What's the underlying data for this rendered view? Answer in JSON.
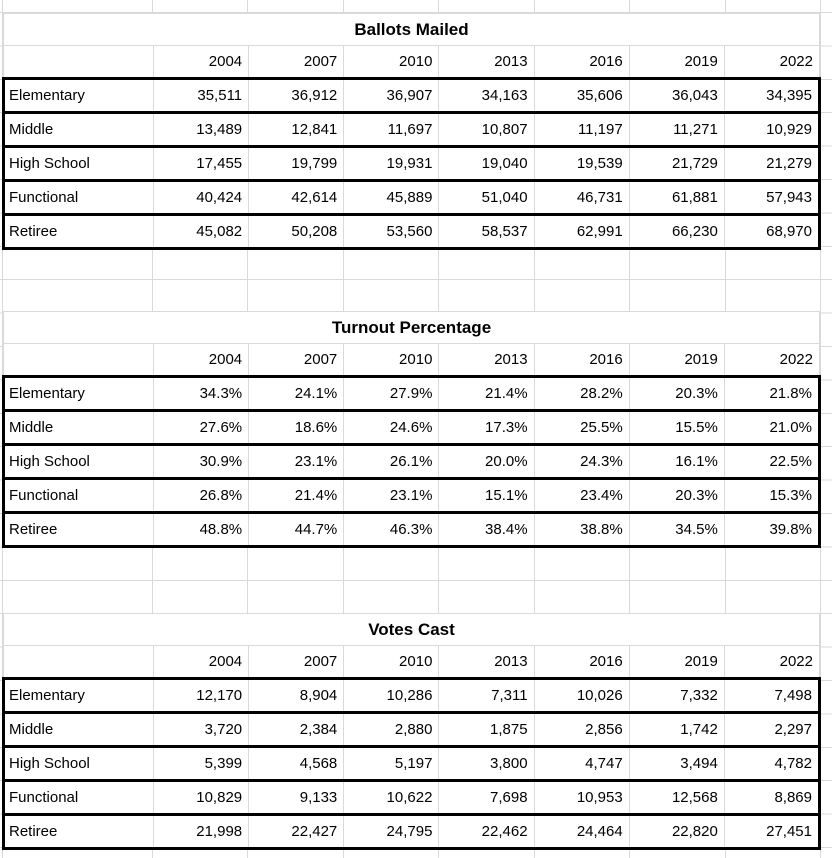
{
  "years": [
    "2004",
    "2007",
    "2010",
    "2013",
    "2016",
    "2019",
    "2022"
  ],
  "tables": [
    {
      "title": "Ballots Mailed",
      "rows": [
        {
          "label": "Elementary",
          "values": [
            "35,511",
            "36,912",
            "36,907",
            "34,163",
            "35,606",
            "36,043",
            "34,395"
          ]
        },
        {
          "label": "Middle",
          "values": [
            "13,489",
            "12,841",
            "11,697",
            "10,807",
            "11,197",
            "11,271",
            "10,929"
          ]
        },
        {
          "label": "High School",
          "values": [
            "17,455",
            "19,799",
            "19,931",
            "19,040",
            "19,539",
            "21,729",
            "21,279"
          ]
        },
        {
          "label": "Functional",
          "values": [
            "40,424",
            "42,614",
            "45,889",
            "51,040",
            "46,731",
            "61,881",
            "57,943"
          ]
        },
        {
          "label": "Retiree",
          "values": [
            "45,082",
            "50,208",
            "53,560",
            "58,537",
            "62,991",
            "66,230",
            "68,970"
          ]
        }
      ]
    },
    {
      "title": "Turnout Percentage",
      "rows": [
        {
          "label": "Elementary",
          "values": [
            "34.3%",
            "24.1%",
            "27.9%",
            "21.4%",
            "28.2%",
            "20.3%",
            "21.8%"
          ]
        },
        {
          "label": "Middle",
          "values": [
            "27.6%",
            "18.6%",
            "24.6%",
            "17.3%",
            "25.5%",
            "15.5%",
            "21.0%"
          ]
        },
        {
          "label": "High School",
          "values": [
            "30.9%",
            "23.1%",
            "26.1%",
            "20.0%",
            "24.3%",
            "16.1%",
            "22.5%"
          ]
        },
        {
          "label": "Functional",
          "values": [
            "26.8%",
            "21.4%",
            "23.1%",
            "15.1%",
            "23.4%",
            "20.3%",
            "15.3%"
          ]
        },
        {
          "label": "Retiree",
          "values": [
            "48.8%",
            "44.7%",
            "46.3%",
            "38.4%",
            "38.8%",
            "34.5%",
            "39.8%"
          ]
        }
      ]
    },
    {
      "title": "Votes Cast",
      "rows": [
        {
          "label": "Elementary",
          "values": [
            "12,170",
            "8,904",
            "10,286",
            "7,311",
            "10,026",
            "7,332",
            "7,498"
          ]
        },
        {
          "label": "Middle",
          "values": [
            "3,720",
            "2,384",
            "2,880",
            "1,875",
            "2,856",
            "1,742",
            "2,297"
          ]
        },
        {
          "label": "High School",
          "values": [
            "5,399",
            "4,568",
            "5,197",
            "3,800",
            "4,747",
            "3,494",
            "4,782"
          ]
        },
        {
          "label": "Functional",
          "values": [
            "10,829",
            "9,133",
            "10,622",
            "7,698",
            "10,953",
            "12,568",
            "8,869"
          ]
        },
        {
          "label": "Retiree",
          "values": [
            "21,998",
            "22,427",
            "24,795",
            "22,462",
            "24,464",
            "22,820",
            "27,451"
          ]
        }
      ]
    }
  ],
  "colors": {
    "gridline": "#d9d9d9",
    "table_border": "#000000",
    "text": "#000000",
    "background": "#ffffff"
  }
}
